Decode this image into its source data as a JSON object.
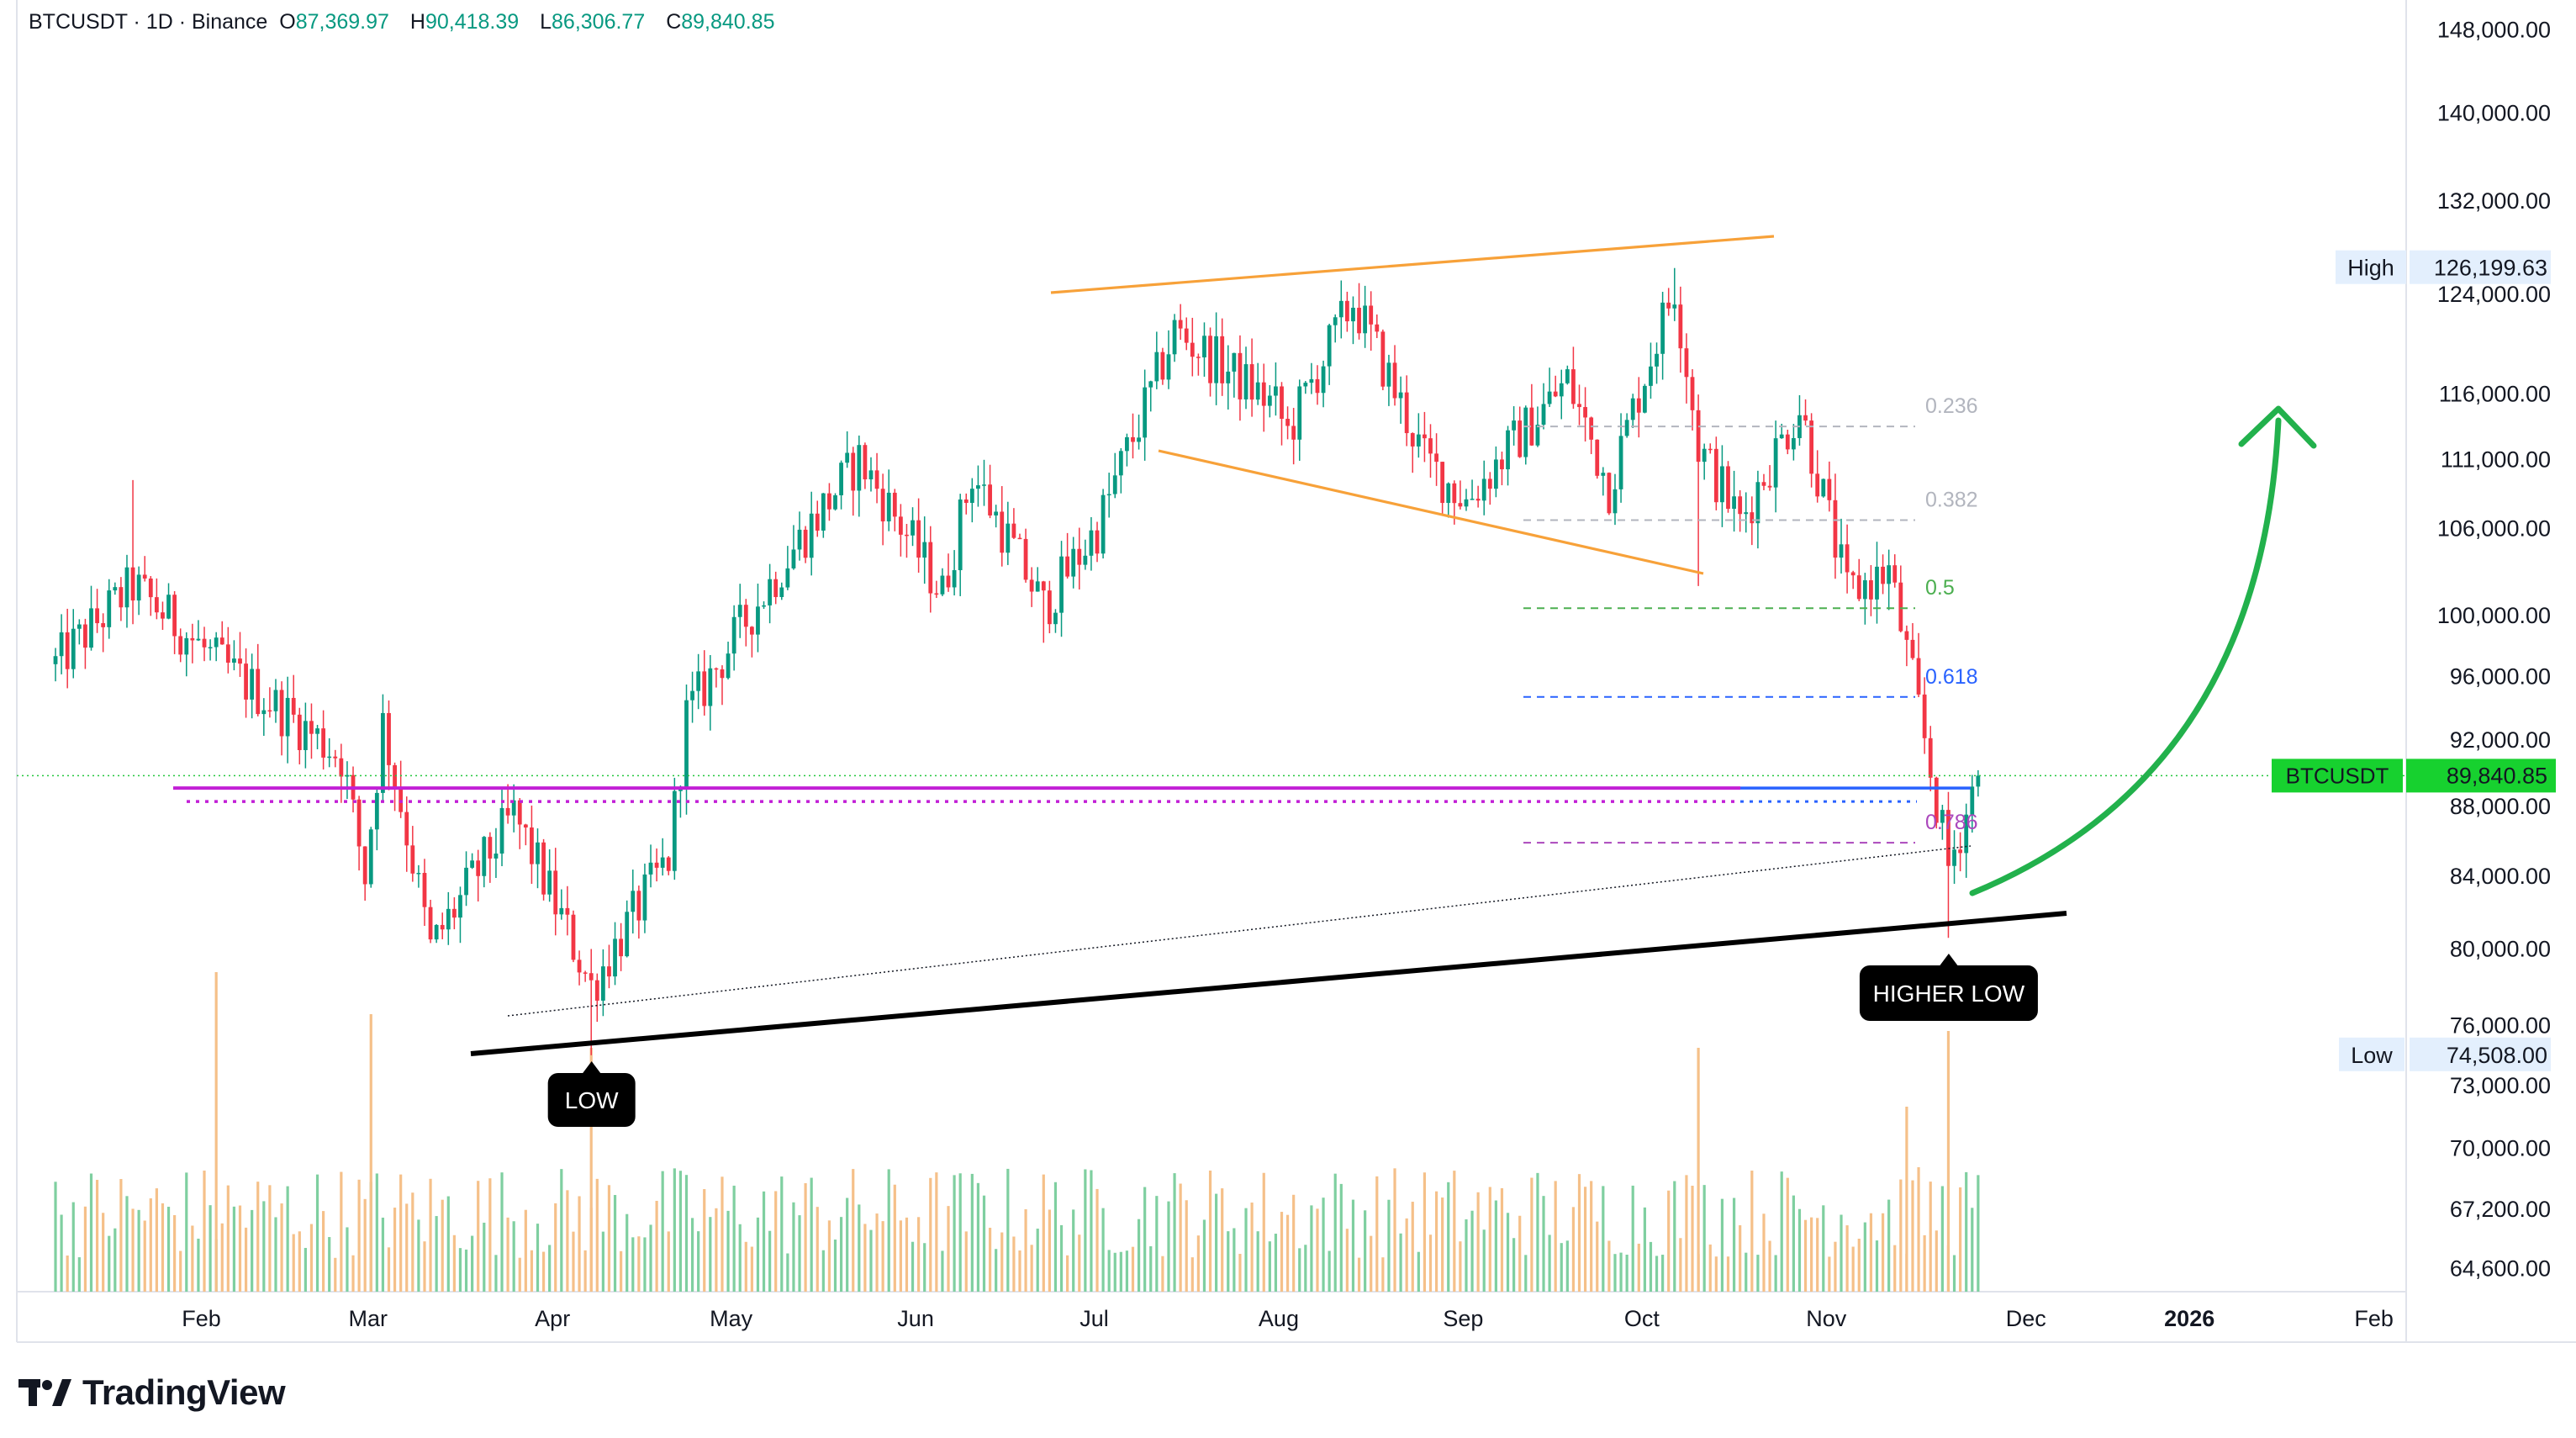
{
  "header": {
    "symbol_line": "BTCUSDT · 1D · Binance",
    "open_label": "O",
    "open": "87,369.97",
    "high_label": "H",
    "high": "90,418.39",
    "low_label": "L",
    "low": "86,306.77",
    "close_label": "C",
    "close": "89,840.85"
  },
  "brand": {
    "name": "TradingView"
  },
  "colors": {
    "up": "#089981",
    "down": "#f23645",
    "vol_up": "#7fcfa0",
    "vol_down": "#f5c089",
    "channel": "#f7a139",
    "magenta": "#c21fd6",
    "blue": "#2962ff",
    "arrow": "#22b14c",
    "price_badge": "#17d12f",
    "support": "#000000"
  },
  "chart_data": {
    "type": "candlestick",
    "symbol": "BTCUSDT",
    "interval": "1D",
    "exchange": "Binance",
    "x_tick_labels": [
      "Feb",
      "Mar",
      "Apr",
      "May",
      "Jun",
      "Jul",
      "Aug",
      "Sep",
      "Oct",
      "Nov",
      "Dec",
      "2026",
      "Feb"
    ],
    "y_tick_labels": [
      "148,000.00",
      "140,000.00",
      "132,000.00",
      "124,000.00",
      "116,000.00",
      "111,000.00",
      "106,000.00",
      "100,000.00",
      "96,000.00",
      "92,000.00",
      "88,000.00",
      "84,000.00",
      "80,000.00",
      "76,000.00",
      "73,000.00",
      "70,000.00",
      "67,200.00",
      "64,600.00"
    ],
    "y_scale": "log",
    "ylim": [
      63600,
      151000
    ],
    "price_marks": [
      {
        "label": "High",
        "value": "126,199.63"
      },
      {
        "label": "BTCUSDT",
        "value": "89,840.85"
      },
      {
        "label": "Low",
        "value": "74,508.00"
      }
    ],
    "fibonacci": [
      {
        "label": "0.236",
        "price": 113500
      },
      {
        "label": "0.382",
        "price": 106600
      },
      {
        "label": "0.5",
        "price": 100500
      },
      {
        "label": "0.618",
        "price": 94700
      },
      {
        "label": "0.786",
        "price": 85900
      }
    ],
    "horizontal_levels": [
      {
        "name": "magenta-solid",
        "price": 89100
      },
      {
        "name": "magenta-dotted",
        "price": 88300
      },
      {
        "name": "blue-solid",
        "price": 89100
      },
      {
        "name": "blue-dotted",
        "price": 88300
      }
    ],
    "annotations": [
      {
        "text": "LOW",
        "date": "2025-04-07",
        "price": 74508
      },
      {
        "text": "HIGHER LOW",
        "date": "2025-11-21",
        "price": 80600
      }
    ],
    "anchors": [
      {
        "date": "2025-01-07",
        "close": 96800
      },
      {
        "date": "2025-01-20",
        "close": 102000
      },
      {
        "date": "2025-02-03",
        "close": 97000
      },
      {
        "date": "2025-02-24",
        "close": 91000
      },
      {
        "date": "2025-02-28",
        "close": 84000
      },
      {
        "date": "2025-03-03",
        "close": 93000
      },
      {
        "date": "2025-03-11",
        "close": 80000
      },
      {
        "date": "2025-03-25",
        "close": 87500
      },
      {
        "date": "2025-04-07",
        "close": 78000
      },
      {
        "date": "2025-04-20",
        "close": 85000
      },
      {
        "date": "2025-04-23",
        "close": 93500
      },
      {
        "date": "2025-05-10",
        "close": 104000
      },
      {
        "date": "2025-05-22",
        "close": 111000
      },
      {
        "date": "2025-06-05",
        "close": 101500
      },
      {
        "date": "2025-06-10",
        "close": 110000
      },
      {
        "date": "2025-06-22",
        "close": 100500
      },
      {
        "date": "2025-07-01",
        "close": 106000
      },
      {
        "date": "2025-07-10",
        "close": 116000
      },
      {
        "date": "2025-07-14",
        "close": 121000
      },
      {
        "date": "2025-07-31",
        "close": 115000
      },
      {
        "date": "2025-08-02",
        "close": 113000
      },
      {
        "date": "2025-08-13",
        "close": 123500
      },
      {
        "date": "2025-08-25",
        "close": 111000
      },
      {
        "date": "2025-09-01",
        "close": 108000
      },
      {
        "date": "2025-09-18",
        "close": 117000
      },
      {
        "date": "2025-09-25",
        "close": 109000
      },
      {
        "date": "2025-10-06",
        "close": 124700
      },
      {
        "date": "2025-10-10",
        "close": 112000
      },
      {
        "date": "2025-10-17",
        "close": 106500
      },
      {
        "date": "2025-10-27",
        "close": 115000
      },
      {
        "date": "2025-11-04",
        "close": 101500
      },
      {
        "date": "2025-11-11",
        "close": 103000
      },
      {
        "date": "2025-11-17",
        "close": 92000
      },
      {
        "date": "2025-11-21",
        "close": 84500
      },
      {
        "date": "2025-11-26",
        "close": 89840
      }
    ],
    "volume_bars": "unlabelled"
  }
}
